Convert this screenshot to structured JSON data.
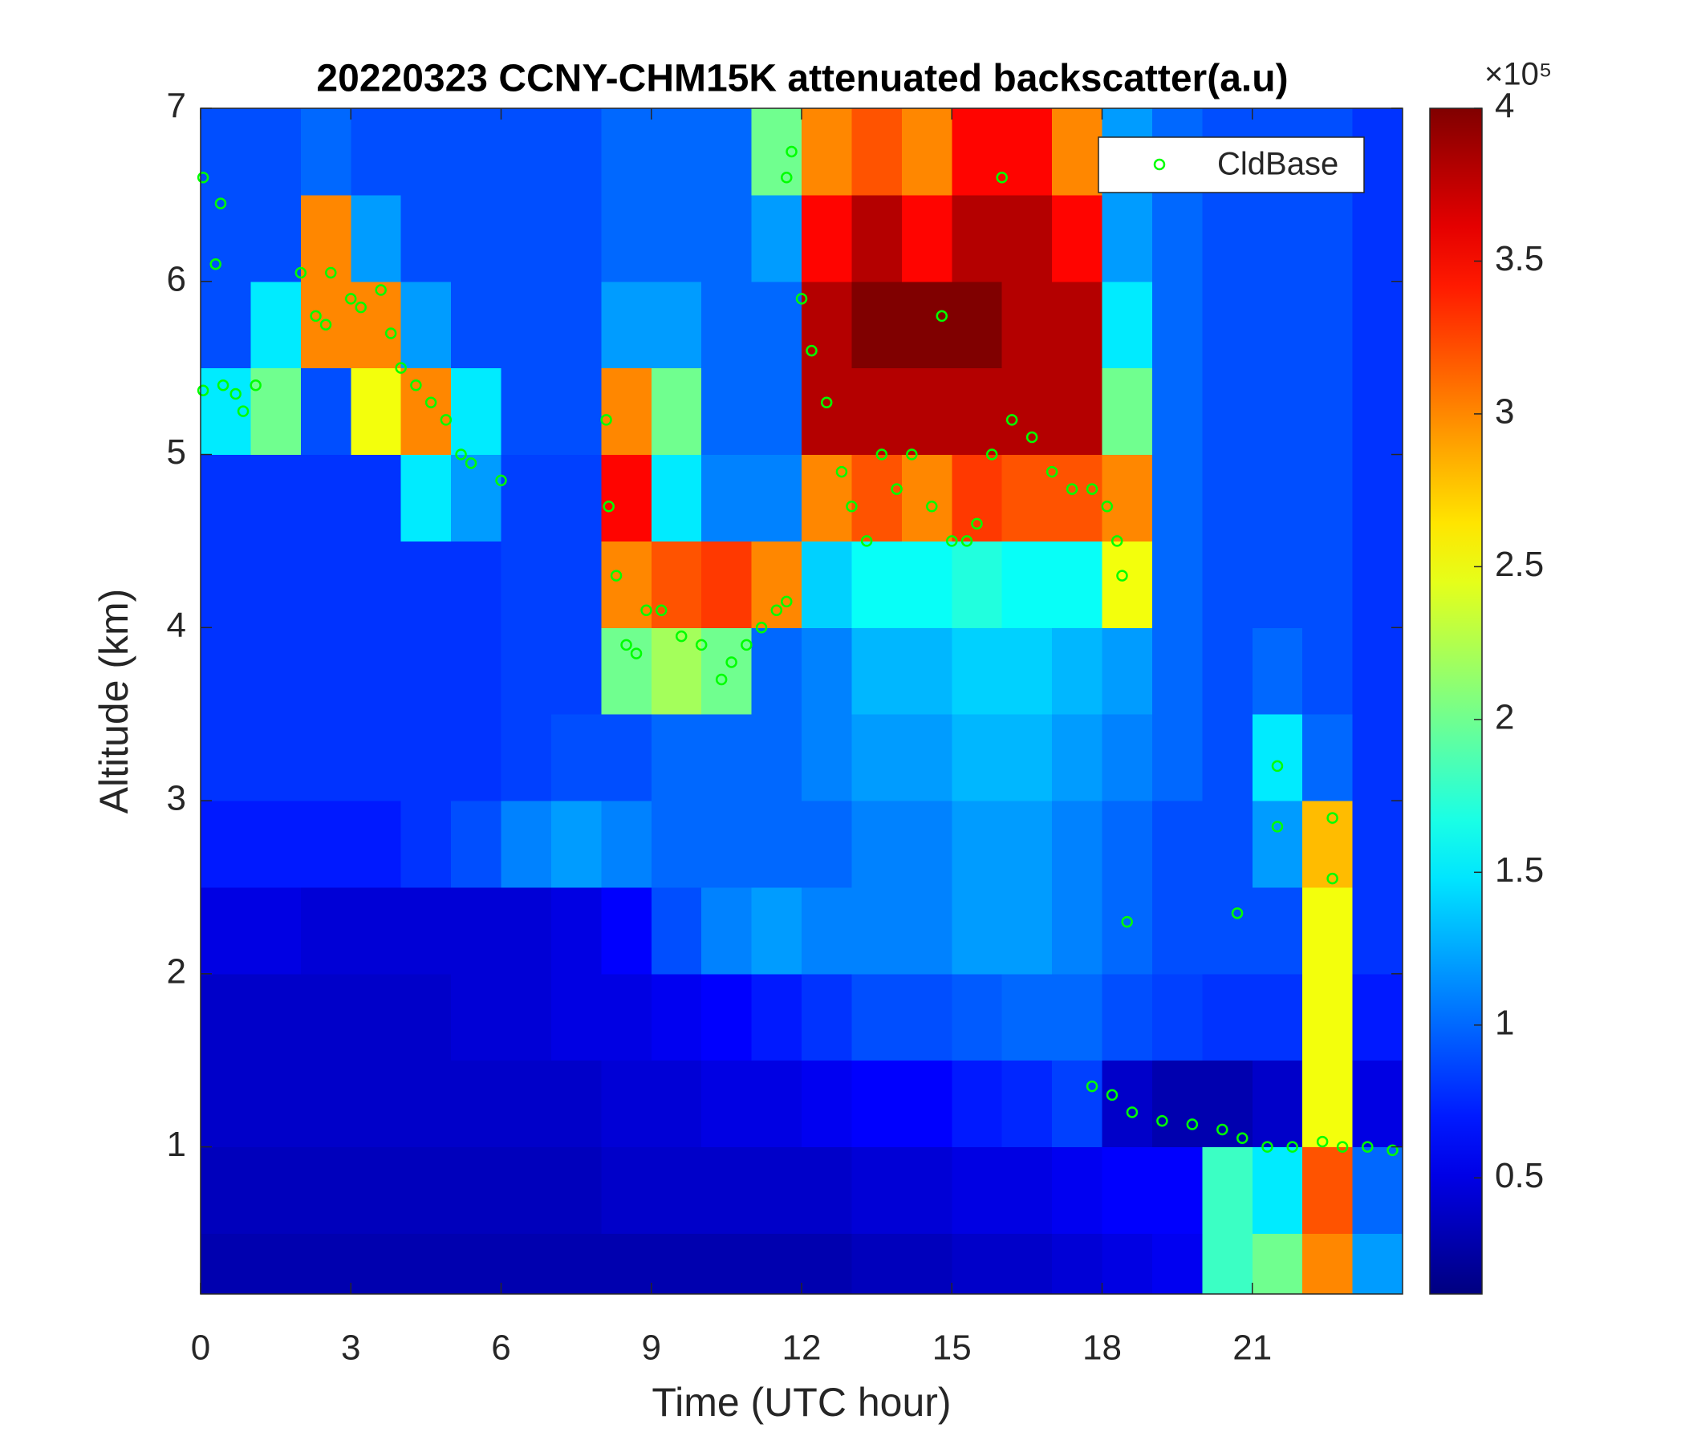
{
  "chart_data": {
    "type": "heatmap",
    "title": "20220323 CCNY-CHM15K attenuated backscatter(a.u)",
    "xlabel": "Time (UTC hour)",
    "ylabel": "Altitude (km)",
    "xlim": [
      0,
      24
    ],
    "ylim": [
      0.15,
      7
    ],
    "xticks": [
      0,
      3,
      6,
      9,
      12,
      15,
      18,
      21
    ],
    "yticks": [
      1,
      2,
      3,
      4,
      5,
      6,
      7
    ],
    "colormap": "jet",
    "clim": [
      0.12,
      4
    ],
    "cticks": [
      0.5,
      1,
      1.5,
      2,
      2.5,
      3,
      3.5,
      4
    ],
    "colorbar_exponent": "×10⁵",
    "x_edges": [
      0,
      1,
      2,
      3,
      4,
      5,
      6,
      7,
      8,
      9,
      10,
      11,
      12,
      13,
      14,
      15,
      16,
      17,
      18,
      19,
      20,
      21,
      22,
      23,
      24
    ],
    "y_edges": [
      0.15,
      0.5,
      1,
      1.5,
      2,
      2.5,
      3,
      3.5,
      4,
      4.5,
      5,
      5.5,
      6,
      6.5,
      7
    ],
    "z": [
      [
        0.3,
        0.3,
        0.3,
        0.3,
        0.3,
        0.3,
        0.3,
        0.3,
        0.3,
        0.3,
        0.3,
        0.3,
        0.3,
        0.35,
        0.35,
        0.4,
        0.4,
        0.45,
        0.5,
        0.55,
        1.8,
        2.0,
        3.0,
        1.2
      ],
      [
        0.35,
        0.35,
        0.35,
        0.35,
        0.35,
        0.35,
        0.35,
        0.35,
        0.4,
        0.4,
        0.4,
        0.4,
        0.4,
        0.45,
        0.45,
        0.5,
        0.5,
        0.55,
        0.6,
        0.6,
        1.8,
        1.5,
        3.2,
        1.0
      ],
      [
        0.4,
        0.4,
        0.4,
        0.4,
        0.4,
        0.4,
        0.4,
        0.4,
        0.45,
        0.45,
        0.5,
        0.5,
        0.55,
        0.6,
        0.6,
        0.7,
        0.75,
        0.85,
        0.4,
        0.3,
        0.3,
        0.4,
        2.5,
        0.5
      ],
      [
        0.4,
        0.4,
        0.4,
        0.4,
        0.4,
        0.45,
        0.45,
        0.5,
        0.5,
        0.55,
        0.6,
        0.7,
        0.8,
        0.9,
        0.9,
        0.95,
        1.0,
        1.0,
        0.9,
        0.85,
        0.8,
        0.8,
        2.5,
        0.7
      ],
      [
        0.5,
        0.5,
        0.45,
        0.45,
        0.45,
        0.45,
        0.45,
        0.5,
        0.6,
        0.9,
        1.1,
        1.2,
        1.1,
        1.1,
        1.1,
        1.2,
        1.2,
        1.1,
        1.0,
        0.9,
        0.9,
        0.9,
        2.5,
        0.8
      ],
      [
        0.7,
        0.7,
        0.7,
        0.7,
        0.8,
        0.9,
        1.1,
        1.2,
        1.1,
        1.0,
        1.0,
        1.0,
        1.0,
        1.1,
        1.1,
        1.2,
        1.2,
        1.1,
        1.0,
        0.9,
        0.9,
        1.2,
        2.8,
        0.8
      ],
      [
        0.8,
        0.8,
        0.8,
        0.8,
        0.8,
        0.8,
        0.85,
        0.9,
        0.9,
        1.0,
        1.0,
        1.0,
        1.1,
        1.2,
        1.2,
        1.3,
        1.3,
        1.2,
        1.1,
        1.0,
        0.9,
        1.5,
        1.0,
        0.8
      ],
      [
        0.8,
        0.8,
        0.8,
        0.8,
        0.8,
        0.8,
        0.85,
        0.85,
        2.0,
        2.2,
        2.0,
        1.0,
        1.1,
        1.3,
        1.3,
        1.4,
        1.4,
        1.3,
        1.2,
        1.0,
        0.9,
        1.0,
        0.9,
        0.8
      ],
      [
        0.8,
        0.8,
        0.8,
        0.8,
        0.8,
        0.8,
        0.85,
        0.85,
        3.0,
        3.2,
        3.3,
        3.0,
        1.4,
        1.6,
        1.6,
        1.7,
        1.6,
        1.6,
        2.5,
        1.0,
        0.9,
        0.9,
        0.9,
        0.8
      ],
      [
        0.8,
        0.8,
        0.8,
        0.8,
        1.5,
        1.2,
        0.85,
        0.85,
        3.5,
        1.5,
        1.1,
        1.1,
        3.0,
        3.2,
        3.0,
        3.3,
        3.2,
        3.2,
        3.0,
        1.0,
        0.9,
        0.9,
        0.9,
        0.8
      ],
      [
        1.5,
        2.0,
        0.9,
        2.5,
        3.0,
        1.5,
        0.9,
        0.9,
        3.0,
        2.0,
        1.0,
        1.0,
        3.8,
        3.8,
        3.8,
        3.8,
        3.8,
        3.8,
        2.0,
        1.0,
        0.9,
        0.9,
        0.9,
        0.8
      ],
      [
        0.9,
        1.5,
        3.0,
        3.0,
        1.2,
        0.9,
        0.9,
        0.9,
        1.2,
        1.2,
        1.0,
        1.0,
        3.8,
        4.0,
        4.0,
        4.0,
        3.8,
        3.8,
        1.5,
        1.0,
        0.9,
        0.9,
        0.9,
        0.8
      ],
      [
        0.9,
        0.9,
        3.0,
        1.2,
        0.9,
        0.9,
        0.9,
        0.9,
        1.0,
        1.0,
        1.0,
        1.2,
        3.5,
        3.8,
        3.5,
        3.8,
        3.8,
        3.5,
        1.2,
        1.0,
        0.9,
        0.9,
        0.9,
        0.8
      ],
      [
        0.9,
        0.9,
        1.0,
        0.9,
        0.9,
        0.9,
        0.9,
        0.9,
        1.0,
        1.0,
        1.0,
        2.0,
        3.0,
        3.2,
        3.0,
        3.5,
        3.5,
        3.0,
        1.2,
        1.0,
        0.9,
        0.9,
        0.9,
        0.8
      ]
    ],
    "legend": "northeast",
    "series": [
      {
        "name": "CldBase",
        "type": "scatter",
        "color": "#00ff00",
        "x": [
          0.05,
          0.05,
          0.3,
          0.45,
          0.7,
          0.85,
          1.1,
          0.4,
          2.0,
          2.3,
          2.5,
          2.6,
          3.0,
          3.2,
          3.6,
          3.8,
          4.0,
          4.3,
          4.6,
          4.9,
          5.2,
          5.4,
          6.0,
          8.1,
          8.15,
          8.3,
          8.5,
          8.7,
          8.9,
          9.2,
          9.6,
          10.0,
          10.4,
          10.6,
          10.9,
          11.2,
          11.5,
          11.7,
          11.7,
          11.8,
          12.0,
          12.2,
          12.5,
          12.8,
          13.0,
          13.3,
          13.6,
          13.9,
          14.2,
          14.6,
          15.0,
          15.3,
          15.5,
          15.8,
          16.2,
          16.6,
          17.0,
          17.4,
          17.8,
          18.1,
          18.3,
          18.4,
          16.0,
          14.8,
          17.8,
          18.2,
          18.6,
          19.2,
          19.8,
          20.4,
          20.8,
          21.3,
          21.8,
          22.4,
          22.8,
          23.3,
          23.8,
          21.5,
          21.5,
          22.6,
          22.6,
          20.7,
          18.5
        ],
        "values": [
          6.6,
          5.37,
          6.1,
          5.4,
          5.35,
          5.25,
          5.4,
          6.45,
          6.05,
          5.8,
          5.75,
          6.05,
          5.9,
          5.85,
          5.95,
          5.7,
          5.5,
          5.4,
          5.3,
          5.2,
          5.0,
          4.95,
          4.85,
          5.2,
          4.7,
          4.3,
          3.9,
          3.85,
          4.1,
          4.1,
          3.95,
          3.9,
          3.7,
          3.8,
          3.9,
          4.0,
          4.1,
          4.15,
          6.6,
          6.75,
          5.9,
          5.6,
          5.3,
          4.9,
          4.7,
          4.5,
          5.0,
          4.8,
          5.0,
          4.7,
          4.5,
          4.5,
          4.6,
          5.0,
          5.2,
          5.1,
          4.9,
          4.8,
          4.8,
          4.7,
          4.5,
          4.3,
          6.6,
          5.8,
          1.35,
          1.3,
          1.2,
          1.15,
          1.13,
          1.1,
          1.05,
          1.0,
          1.0,
          1.03,
          1.0,
          1.0,
          0.98,
          3.2,
          2.85,
          2.9,
          2.55,
          2.35,
          2.3
        ]
      }
    ]
  }
}
